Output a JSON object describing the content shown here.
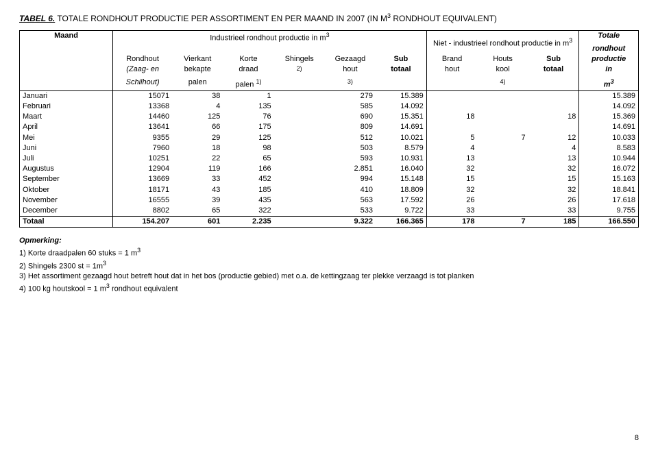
{
  "title": {
    "label": "TABEL 6.",
    "caption": "TOTALE RONDHOUT PRODUCTIE PER ASSORTIMENT EN PER MAAND IN 2007 (IN M",
    "caption_sup": "3",
    "caption_tail": " RONDHOUT EQUIVALENT)"
  },
  "header": {
    "maand": "Maand",
    "group_ind": "Industrieel rondhout productie in m",
    "group_ind_sup": "3",
    "group_niet": "Niet - industrieel rondhout productie in m",
    "group_niet_sup": "3",
    "tot1": "Totale",
    "tot2": "rondhout",
    "tot3": "productie",
    "tot4": "in",
    "tot5": "m",
    "tot5_sup": "3",
    "c1a": "Rondhout",
    "c1b": "(Zaag- en",
    "c1c": "Schilhout)",
    "c2a": "Vierkant",
    "c2b": "bekapte",
    "c2c": "palen",
    "c3a": "Korte",
    "c3b": "draad",
    "c3c": "palen ",
    "c3c_sup": "1)",
    "c4a": "Shingels",
    "c4b_sup": "2)",
    "c5a": "Gezaagd",
    "c5b": "hout",
    "c5c_sup": "3)",
    "c6a": "Sub",
    "c6b": "totaal",
    "c7a": "Brand",
    "c7b": "hout",
    "c8a": "Houts",
    "c8b": "kool",
    "c8c_sup": "4)",
    "c9a": "Sub",
    "c9b": "totaal"
  },
  "rows": [
    {
      "m": "Januari",
      "c1": "15071",
      "c2": "38",
      "c3": "1",
      "c4": "",
      "c5": "279",
      "c6": "15.389",
      "c7": "",
      "c8": "",
      "c9": "",
      "c10": "15.389"
    },
    {
      "m": "Februari",
      "c1": "13368",
      "c2": "4",
      "c3": "135",
      "c4": "",
      "c5": "585",
      "c6": "14.092",
      "c7": "",
      "c8": "",
      "c9": "",
      "c10": "14.092"
    },
    {
      "m": "Maart",
      "c1": "14460",
      "c2": "125",
      "c3": "76",
      "c4": "",
      "c5": "690",
      "c6": "15.351",
      "c7": "18",
      "c8": "",
      "c9": "18",
      "c10": "15.369"
    },
    {
      "m": "April",
      "c1": "13641",
      "c2": "66",
      "c3": "175",
      "c4": "",
      "c5": "809",
      "c6": "14.691",
      "c7": "",
      "c8": "",
      "c9": "",
      "c10": "14.691"
    },
    {
      "m": "Mei",
      "c1": "9355",
      "c2": "29",
      "c3": "125",
      "c4": "",
      "c5": "512",
      "c6": "10.021",
      "c7": "5",
      "c8": "7",
      "c9": "12",
      "c10": "10.033"
    },
    {
      "m": "Juni",
      "c1": "7960",
      "c2": "18",
      "c3": "98",
      "c4": "",
      "c5": "503",
      "c6": "8.579",
      "c7": "4",
      "c8": "",
      "c9": "4",
      "c10": "8.583"
    },
    {
      "m": "Juli",
      "c1": "10251",
      "c2": "22",
      "c3": "65",
      "c4": "",
      "c5": "593",
      "c6": "10.931",
      "c7": "13",
      "c8": "",
      "c9": "13",
      "c10": "10.944"
    },
    {
      "m": "Augustus",
      "c1": "12904",
      "c2": "119",
      "c3": "166",
      "c4": "",
      "c5": "2.851",
      "c6": "16.040",
      "c7": "32",
      "c8": "",
      "c9": "32",
      "c10": "16.072"
    },
    {
      "m": "September",
      "c1": "13669",
      "c2": "33",
      "c3": "452",
      "c4": "",
      "c5": "994",
      "c6": "15.148",
      "c7": "15",
      "c8": "",
      "c9": "15",
      "c10": "15.163"
    },
    {
      "m": "Oktober",
      "c1": "18171",
      "c2": "43",
      "c3": "185",
      "c4": "",
      "c5": "410",
      "c6": "18.809",
      "c7": "32",
      "c8": "",
      "c9": "32",
      "c10": "18.841"
    },
    {
      "m": "November",
      "c1": "16555",
      "c2": "39",
      "c3": "435",
      "c4": "",
      "c5": "563",
      "c6": "17.592",
      "c7": "26",
      "c8": "",
      "c9": "26",
      "c10": "17.618"
    },
    {
      "m": "December",
      "c1": "8802",
      "c2": "65",
      "c3": "322",
      "c4": "",
      "c5": "533",
      "c6": "9.722",
      "c7": "33",
      "c8": "",
      "c9": "33",
      "c10": "9.755"
    }
  ],
  "total": {
    "m": "Totaal",
    "c1": "154.207",
    "c2": "601",
    "c3": "2.235",
    "c4": "",
    "c5": "9.322",
    "c6": "166.365",
    "c7": "178",
    "c8": "7",
    "c9": "185",
    "c10": "166.550"
  },
  "remarks": {
    "heading": "Opmerking:",
    "l1a": "1) Korte draadpalen 60 stuks = 1 m",
    "l1sup": "3",
    "l2a": "2) Shingels 2300 st = 1m",
    "l2sup": "3",
    "l3": "3) Het assortiment gezaagd hout betreft hout dat in het bos (productie gebied) met o.a. de kettingzaag ter plekke verzaagd is tot planken",
    "l4a": "4) 100 kg houtskool = 1 m",
    "l4sup": "3",
    "l4b": " rondhout equivalent"
  },
  "pagenum": "8",
  "colwidths": [
    "110",
    "70",
    "60",
    "60",
    "60",
    "60",
    "60",
    "60",
    "60",
    "60",
    "70"
  ]
}
